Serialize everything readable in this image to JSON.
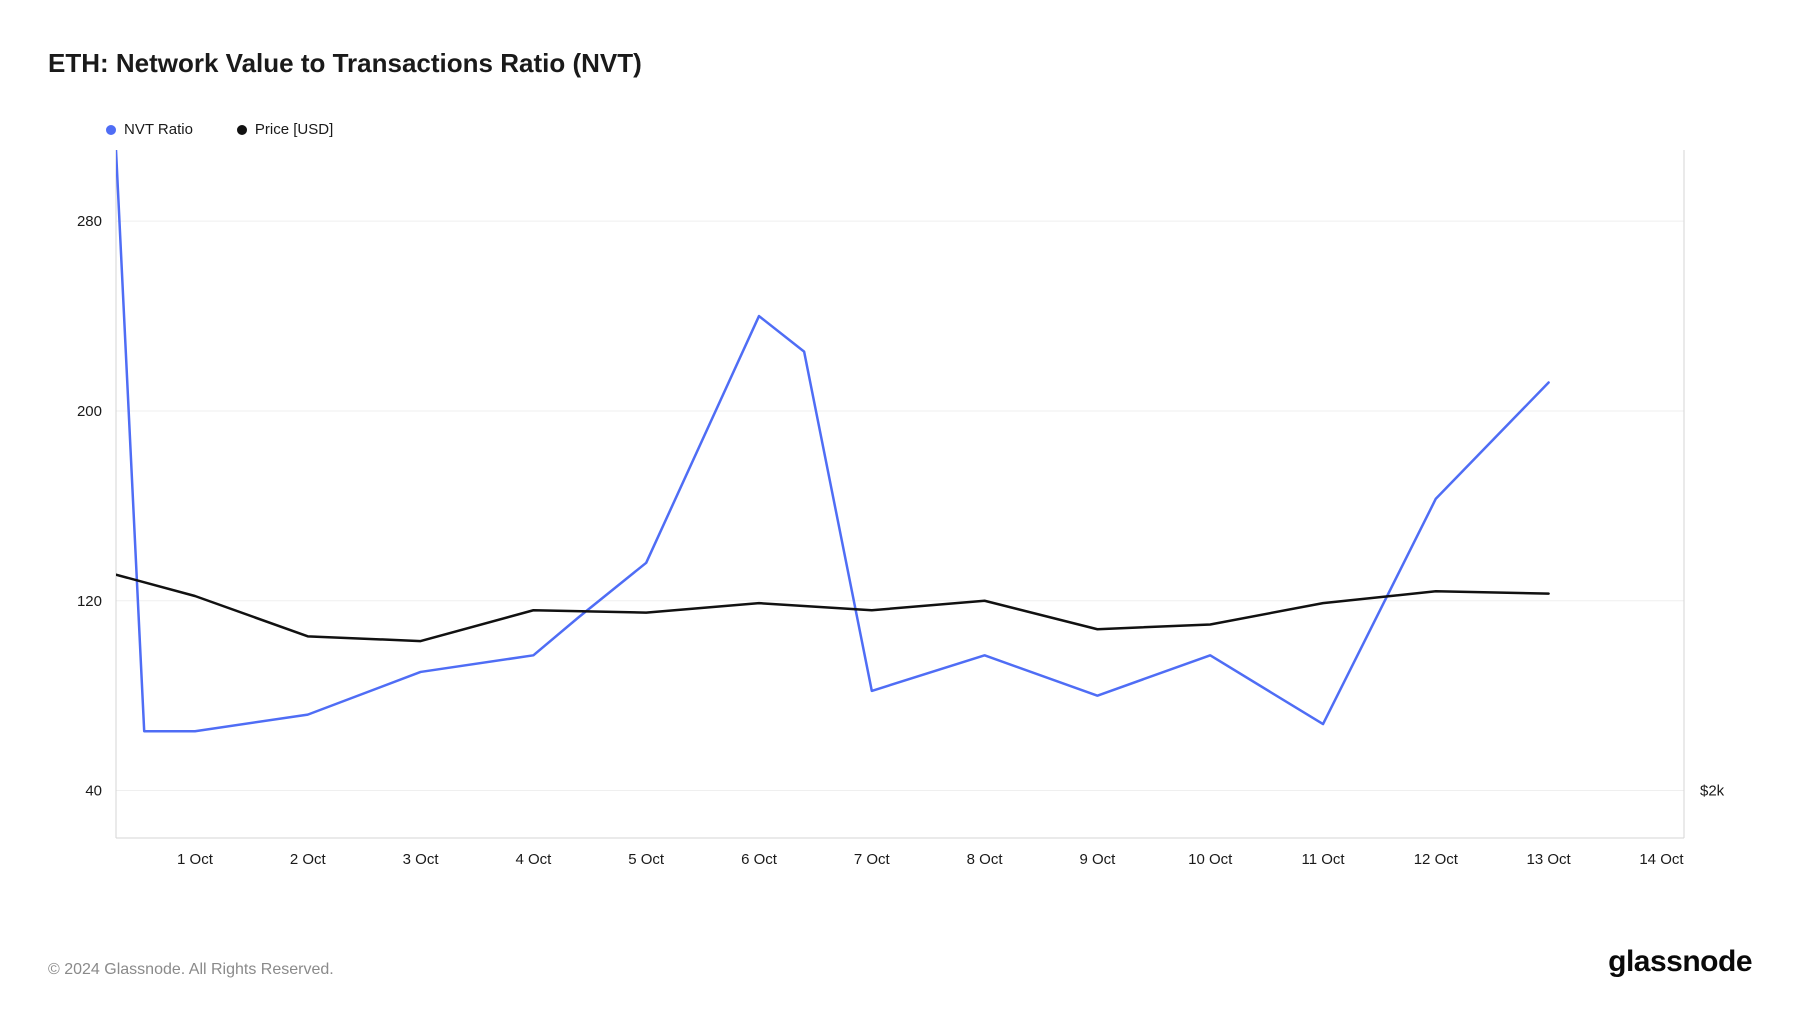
{
  "title": "ETH: Network Value to Transactions Ratio (NVT)",
  "legend": [
    {
      "label": "NVT Ratio",
      "color": "#4f6df5"
    },
    {
      "label": "Price [USD]",
      "color": "#111111"
    }
  ],
  "chart": {
    "type": "line",
    "background_color": "#ffffff",
    "grid_color": "#efefef",
    "frame_color": "#d6d6d6",
    "left_axis": {
      "min": 20,
      "max": 310,
      "ticks": [
        40,
        120,
        200,
        280
      ]
    },
    "right_axis": {
      "label_at_bottom": "$2k"
    },
    "x": {
      "min": 0.3,
      "max": 14.2,
      "ticks": [
        {
          "v": 1,
          "label": "1 Oct"
        },
        {
          "v": 2,
          "label": "2 Oct"
        },
        {
          "v": 3,
          "label": "3 Oct"
        },
        {
          "v": 4,
          "label": "4 Oct"
        },
        {
          "v": 5,
          "label": "5 Oct"
        },
        {
          "v": 6,
          "label": "6 Oct"
        },
        {
          "v": 7,
          "label": "7 Oct"
        },
        {
          "v": 8,
          "label": "8 Oct"
        },
        {
          "v": 9,
          "label": "9 Oct"
        },
        {
          "v": 10,
          "label": "10 Oct"
        },
        {
          "v": 11,
          "label": "11 Oct"
        },
        {
          "v": 12,
          "label": "12 Oct"
        },
        {
          "v": 13,
          "label": "13 Oct"
        },
        {
          "v": 14,
          "label": "14 Oct"
        }
      ]
    },
    "series": [
      {
        "name": "NVT Ratio",
        "color": "#4f6df5",
        "width": 2.5,
        "points": [
          {
            "x": 0.3,
            "y": 310
          },
          {
            "x": 0.55,
            "y": 65
          },
          {
            "x": 1,
            "y": 65
          },
          {
            "x": 2,
            "y": 72
          },
          {
            "x": 3,
            "y": 90
          },
          {
            "x": 4,
            "y": 97
          },
          {
            "x": 4.4,
            "y": 113
          },
          {
            "x": 5,
            "y": 136
          },
          {
            "x": 6,
            "y": 240
          },
          {
            "x": 6.4,
            "y": 225
          },
          {
            "x": 7,
            "y": 82
          },
          {
            "x": 8,
            "y": 97
          },
          {
            "x": 9,
            "y": 80
          },
          {
            "x": 10,
            "y": 97
          },
          {
            "x": 11,
            "y": 68
          },
          {
            "x": 12,
            "y": 163
          },
          {
            "x": 13,
            "y": 212
          }
        ]
      },
      {
        "name": "Price [USD]",
        "color": "#111111",
        "width": 2.5,
        "points": [
          {
            "x": 0.3,
            "y": 131
          },
          {
            "x": 1,
            "y": 122
          },
          {
            "x": 2,
            "y": 105
          },
          {
            "x": 3,
            "y": 103
          },
          {
            "x": 4,
            "y": 116
          },
          {
            "x": 5,
            "y": 115
          },
          {
            "x": 6,
            "y": 119
          },
          {
            "x": 7,
            "y": 116
          },
          {
            "x": 8,
            "y": 120
          },
          {
            "x": 9,
            "y": 108
          },
          {
            "x": 10,
            "y": 110
          },
          {
            "x": 11,
            "y": 119
          },
          {
            "x": 12,
            "y": 124
          },
          {
            "x": 13,
            "y": 123
          }
        ]
      }
    ]
  },
  "footer": {
    "copyright": "© 2024 Glassnode. All Rights Reserved.",
    "brand": "glassnode"
  }
}
